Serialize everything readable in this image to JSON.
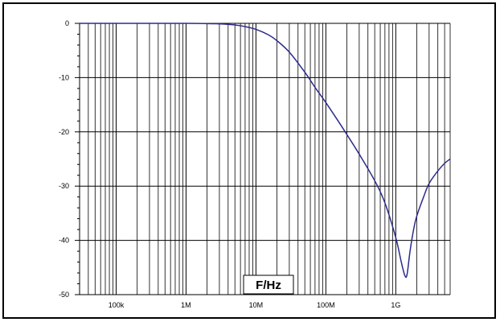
{
  "chart_data": {
    "type": "line",
    "title": "",
    "xlabel": "F/Hz",
    "ylabel": "",
    "x_scale": "log",
    "xlim": [
      30000,
      6000000000
    ],
    "ylim": [
      -50,
      0
    ],
    "grid": true,
    "x_ticks": [
      {
        "value": 100000,
        "label": "100k"
      },
      {
        "value": 1000000,
        "label": "1M"
      },
      {
        "value": 10000000,
        "label": "10M"
      },
      {
        "value": 100000000,
        "label": "100M"
      },
      {
        "value": 1000000000,
        "label": "1G"
      }
    ],
    "y_ticks": [
      {
        "value": 0,
        "label": "0"
      },
      {
        "value": -10,
        "label": "-10"
      },
      {
        "value": -20,
        "label": "-20"
      },
      {
        "value": -30,
        "label": "-30"
      },
      {
        "value": -40,
        "label": "-40"
      },
      {
        "value": -50,
        "label": "-50"
      }
    ],
    "series": [
      {
        "color": "#2b2b8c",
        "x": [
          30000,
          1000000,
          3000000,
          5000000,
          7000000,
          10000000,
          15000000,
          20000000,
          30000000,
          50000000,
          70000000,
          100000000,
          150000000,
          200000000,
          300000000,
          500000000,
          700000000,
          1000000000,
          1200000000,
          1350000000,
          1450000000,
          1600000000,
          1800000000,
          2000000000,
          2500000000,
          3000000000,
          4000000000,
          5000000000,
          6000000000
        ],
        "y": [
          0,
          0,
          -0.1,
          -0.3,
          -0.6,
          -1.1,
          -2.1,
          -3.2,
          -5.3,
          -9,
          -11.8,
          -14.6,
          -18,
          -20.5,
          -24.1,
          -29,
          -33.1,
          -39.5,
          -44,
          -46.5,
          -46.3,
          -42,
          -38,
          -35.5,
          -32,
          -29.5,
          -27.2,
          -25.8,
          -25
        ]
      }
    ]
  }
}
